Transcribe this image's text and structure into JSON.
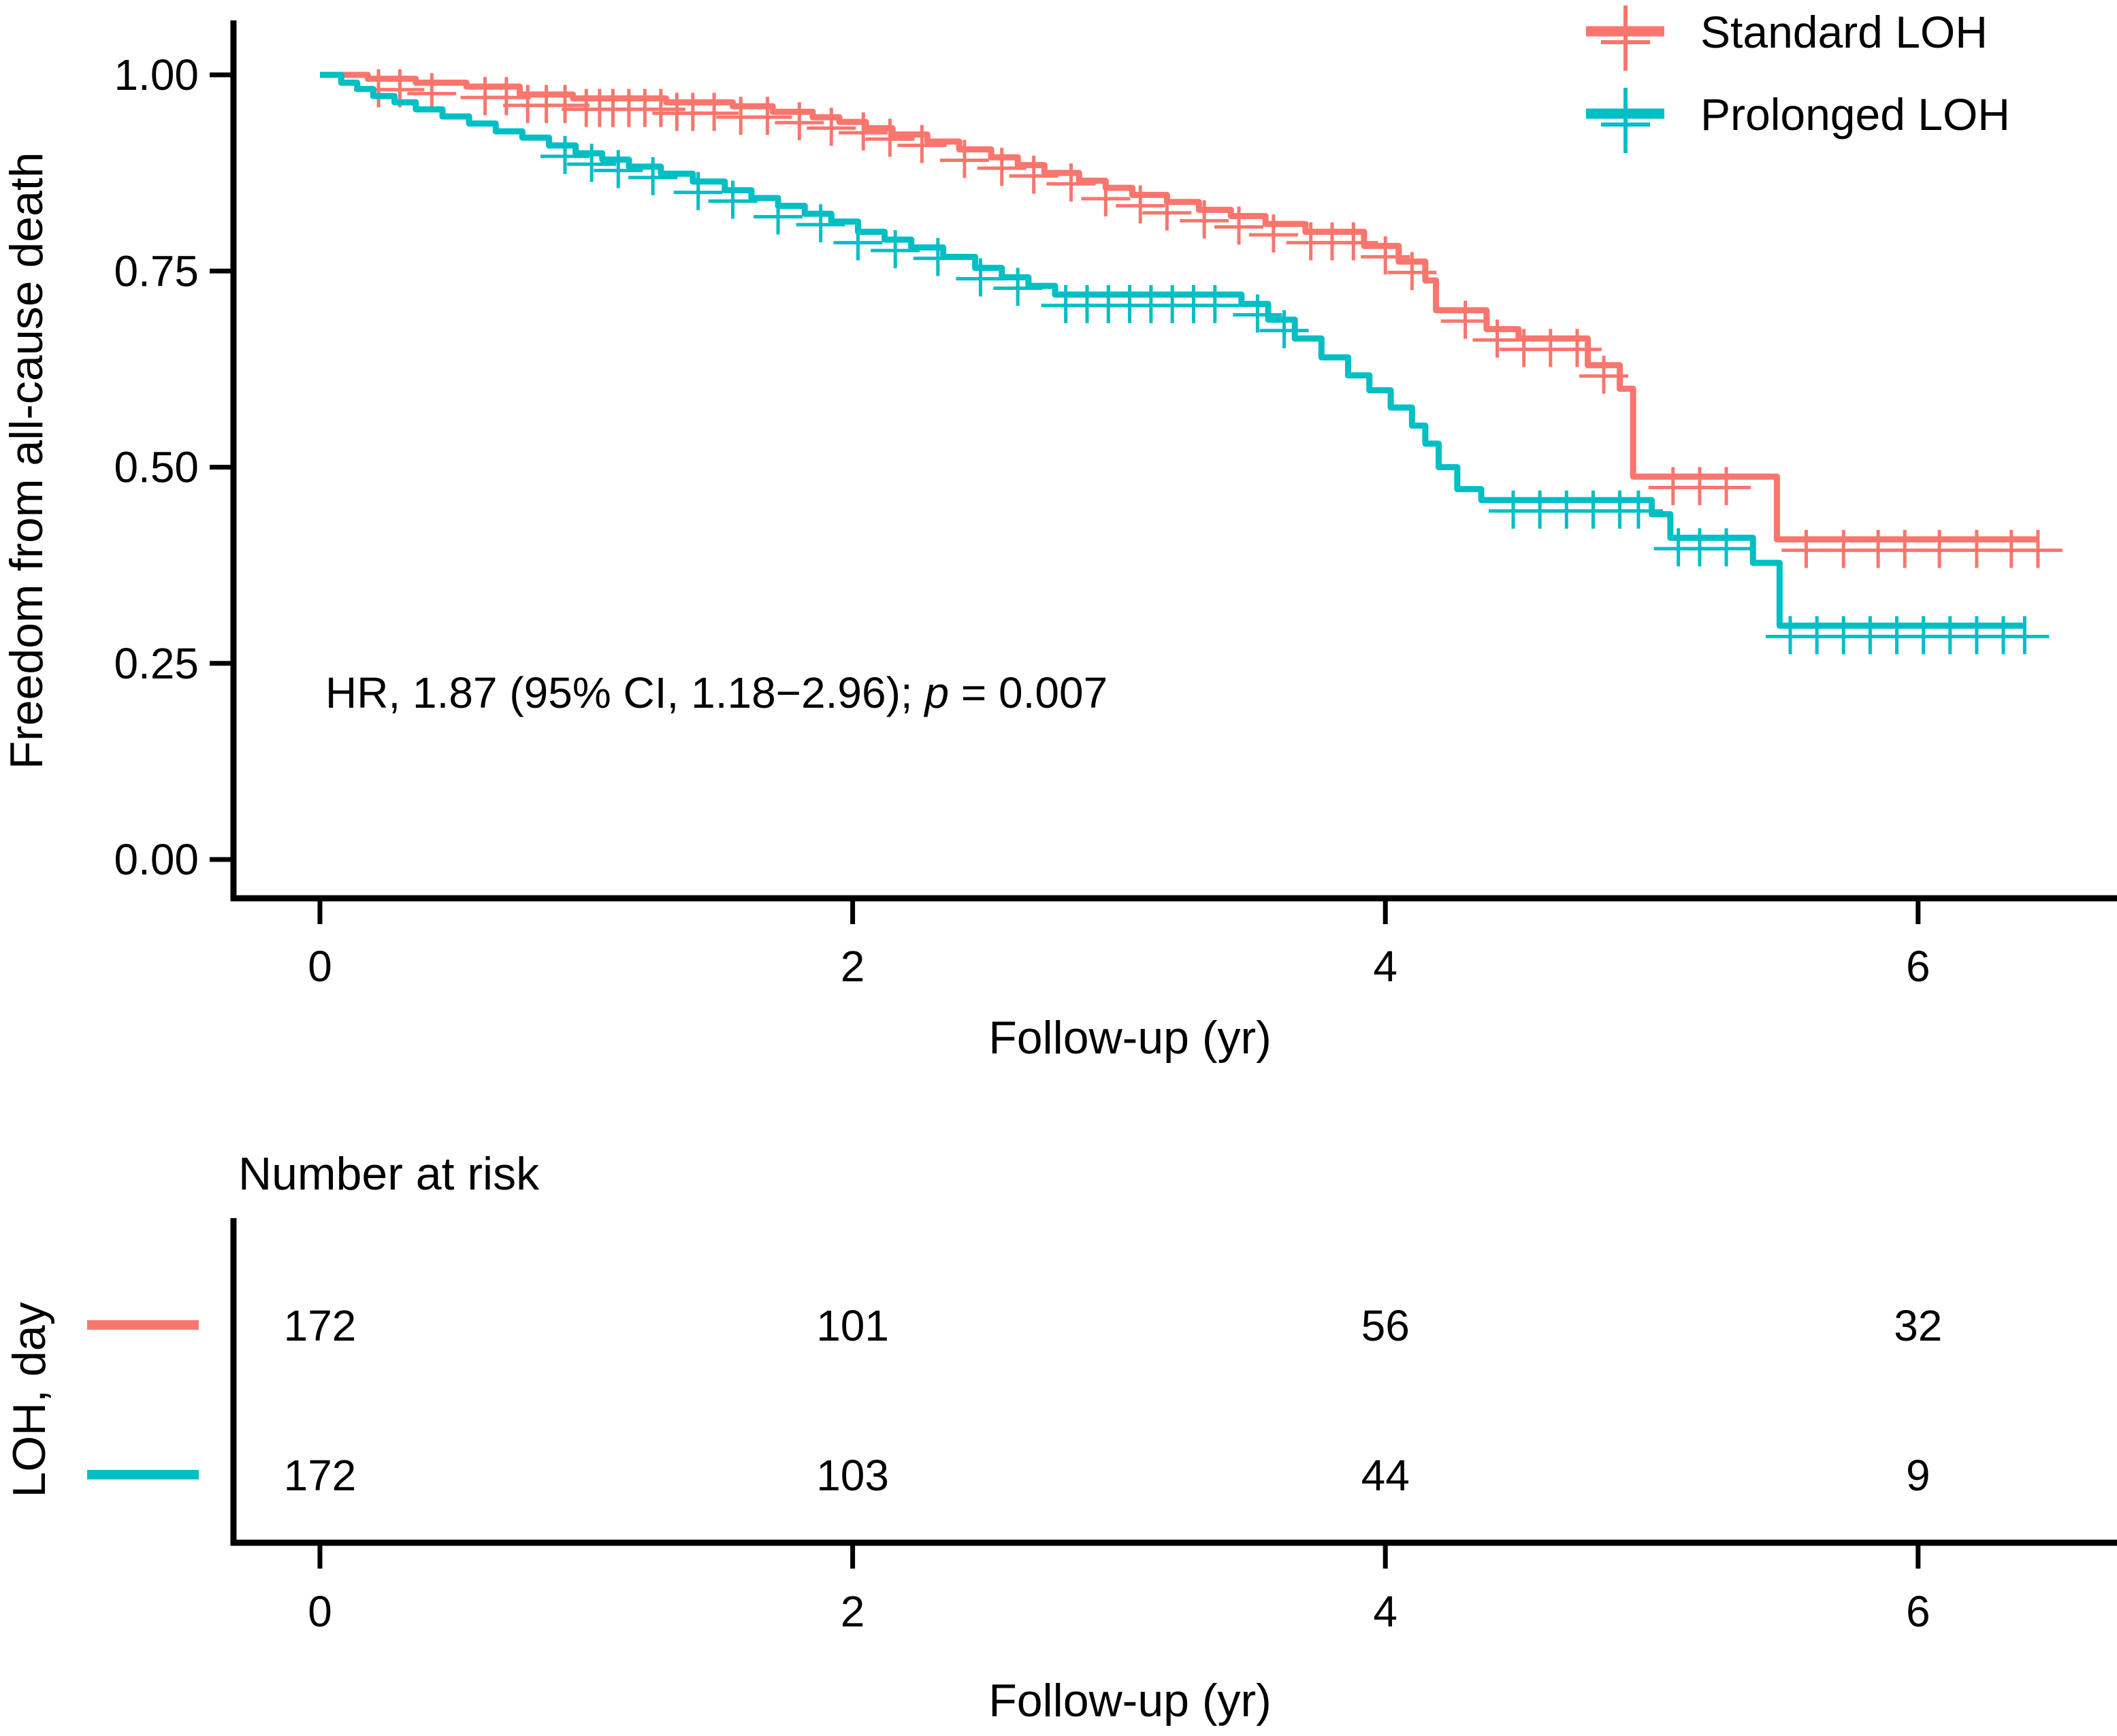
{
  "chart_data": {
    "type": "line",
    "subtype": "kaplan-meier-step",
    "xlabel": "Follow-up (yr)",
    "ylabel": "Freedom from all-cause death",
    "xlim": [
      0,
      6.6
    ],
    "ylim": [
      0,
      1.0
    ],
    "grid": "off",
    "x_ticks": [
      {
        "value": 0,
        "label": "0"
      },
      {
        "value": 2,
        "label": "2"
      },
      {
        "value": 4,
        "label": "4"
      },
      {
        "value": 6,
        "label": "6"
      }
    ],
    "y_ticks": [
      {
        "value": 0.0,
        "label": "0.00"
      },
      {
        "value": 0.25,
        "label": "0.25"
      },
      {
        "value": 0.5,
        "label": "0.50"
      },
      {
        "value": 0.75,
        "label": "0.75"
      },
      {
        "value": 1.0,
        "label": "1.00"
      }
    ],
    "annotation": {
      "prefix": "HR, 1.87 (95% CI, 1.18−2.96); ",
      "p_symbol": "p",
      "suffix": " = 0.007"
    },
    "legend": {
      "position": "top-right"
    },
    "series": [
      {
        "name": "Standard LOH",
        "color": "#F8766D",
        "steps": [
          [
            0,
            1.0
          ],
          [
            0.18,
            0.995
          ],
          [
            0.36,
            0.99
          ],
          [
            0.55,
            0.985
          ],
          [
            0.75,
            0.975
          ],
          [
            0.95,
            0.97
          ],
          [
            1.3,
            0.965
          ],
          [
            1.55,
            0.96
          ],
          [
            1.7,
            0.953
          ],
          [
            1.85,
            0.946
          ],
          [
            1.95,
            0.94
          ],
          [
            2.05,
            0.932
          ],
          [
            2.15,
            0.924
          ],
          [
            2.28,
            0.915
          ],
          [
            2.4,
            0.905
          ],
          [
            2.52,
            0.895
          ],
          [
            2.62,
            0.885
          ],
          [
            2.72,
            0.875
          ],
          [
            2.85,
            0.865
          ],
          [
            2.95,
            0.856
          ],
          [
            3.05,
            0.847
          ],
          [
            3.18,
            0.838
          ],
          [
            3.3,
            0.828
          ],
          [
            3.42,
            0.82
          ],
          [
            3.55,
            0.81
          ],
          [
            3.7,
            0.8
          ],
          [
            3.92,
            0.782
          ],
          [
            4.05,
            0.762
          ],
          [
            4.15,
            0.738
          ],
          [
            4.19,
            0.7
          ],
          [
            4.38,
            0.676
          ],
          [
            4.5,
            0.664
          ],
          [
            4.76,
            0.63
          ],
          [
            4.88,
            0.6
          ],
          [
            4.93,
            0.488
          ],
          [
            5.47,
            0.408
          ],
          [
            6.45,
            0.408
          ]
        ],
        "censor_times": [
          0.22,
          0.3,
          0.42,
          0.62,
          0.7,
          0.78,
          0.85,
          0.92,
          1.0,
          1.05,
          1.1,
          1.16,
          1.22,
          1.28,
          1.34,
          1.4,
          1.48,
          1.58,
          1.68,
          1.8,
          1.92,
          2.04,
          2.14,
          2.26,
          2.42,
          2.56,
          2.68,
          2.82,
          2.95,
          3.08,
          3.18,
          3.32,
          3.45,
          3.58,
          3.72,
          3.8,
          3.88,
          4.0,
          4.1,
          4.3,
          4.42,
          4.52,
          4.62,
          4.72,
          4.82,
          5.08,
          5.18,
          5.28,
          5.58,
          5.72,
          5.85,
          5.95,
          6.08,
          6.22,
          6.35,
          6.45
        ]
      },
      {
        "name": "Prolonged LOH",
        "color": "#00BFC4",
        "steps": [
          [
            0,
            1.0
          ],
          [
            0.08,
            0.99
          ],
          [
            0.14,
            0.982
          ],
          [
            0.2,
            0.973
          ],
          [
            0.28,
            0.965
          ],
          [
            0.36,
            0.956
          ],
          [
            0.46,
            0.947
          ],
          [
            0.56,
            0.938
          ],
          [
            0.66,
            0.928
          ],
          [
            0.76,
            0.92
          ],
          [
            0.86,
            0.91
          ],
          [
            0.96,
            0.9
          ],
          [
            1.06,
            0.892
          ],
          [
            1.16,
            0.883
          ],
          [
            1.28,
            0.874
          ],
          [
            1.4,
            0.864
          ],
          [
            1.52,
            0.853
          ],
          [
            1.62,
            0.843
          ],
          [
            1.72,
            0.833
          ],
          [
            1.82,
            0.823
          ],
          [
            1.92,
            0.813
          ],
          [
            2.02,
            0.8
          ],
          [
            2.12,
            0.79
          ],
          [
            2.22,
            0.78
          ],
          [
            2.34,
            0.768
          ],
          [
            2.46,
            0.754
          ],
          [
            2.56,
            0.742
          ],
          [
            2.66,
            0.731
          ],
          [
            2.76,
            0.72
          ],
          [
            3.46,
            0.708
          ],
          [
            3.56,
            0.688
          ],
          [
            3.66,
            0.664
          ],
          [
            3.76,
            0.64
          ],
          [
            3.86,
            0.617
          ],
          [
            3.94,
            0.598
          ],
          [
            4.02,
            0.576
          ],
          [
            4.1,
            0.553
          ],
          [
            4.15,
            0.53
          ],
          [
            4.2,
            0.5
          ],
          [
            4.27,
            0.472
          ],
          [
            4.36,
            0.458
          ],
          [
            5.0,
            0.44
          ],
          [
            5.07,
            0.41
          ],
          [
            5.38,
            0.378
          ],
          [
            5.48,
            0.298
          ],
          [
            6.4,
            0.298
          ]
        ],
        "censor_times": [
          0.92,
          1.02,
          1.12,
          1.25,
          1.42,
          1.55,
          1.72,
          1.88,
          2.02,
          2.16,
          2.32,
          2.48,
          2.62,
          2.8,
          2.88,
          2.96,
          3.04,
          3.12,
          3.2,
          3.28,
          3.36,
          3.52,
          3.62,
          4.48,
          4.58,
          4.68,
          4.78,
          4.88,
          4.95,
          5.1,
          5.18,
          5.28,
          5.52,
          5.62,
          5.72,
          5.82,
          5.92,
          6.02,
          6.12,
          6.22,
          6.32,
          6.4
        ]
      }
    ],
    "risk_table": {
      "title": "Number at risk",
      "ylabel": "LOH, day",
      "xlabel": "Follow-up (yr)",
      "times": [
        0,
        2,
        4,
        6
      ],
      "rows": [
        {
          "name": "Standard LOH",
          "color": "#F8766D",
          "counts": [
            "172",
            "101",
            "56",
            "32"
          ]
        },
        {
          "name": "Prolonged LOH",
          "color": "#00BFC4",
          "counts": [
            "172",
            "103",
            "44",
            "9"
          ]
        }
      ]
    }
  }
}
